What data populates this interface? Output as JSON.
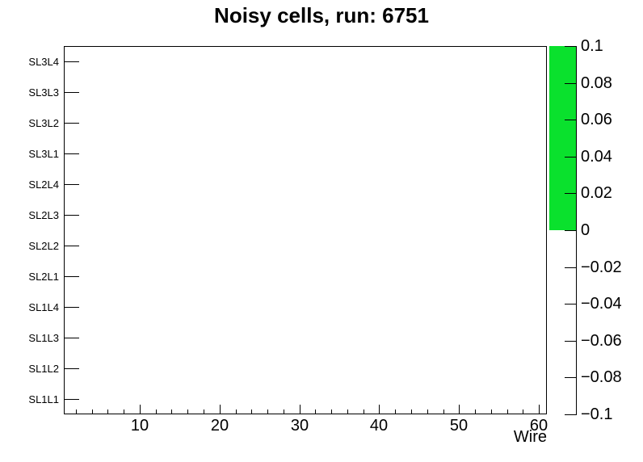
{
  "chart_data": {
    "type": "heatmap",
    "title": "Noisy cells, run: 6751",
    "xlabel": "Wire",
    "ylabel": "",
    "x_axis": {
      "range": [
        0.5,
        61
      ],
      "major_ticks": [
        10,
        20,
        30,
        40,
        50,
        60
      ],
      "major_tick_labels": [
        "10",
        "20",
        "30",
        "40",
        "50",
        "60"
      ],
      "minor_tick_step": 2
    },
    "y_axis": {
      "bins_bottom_to_top": [
        "SL1L1",
        "SL1L2",
        "SL1L3",
        "SL1L4",
        "SL2L1",
        "SL2L2",
        "SL2L3",
        "SL2L4",
        "SL3L1",
        "SL3L2",
        "SL3L3",
        "SL3L4"
      ]
    },
    "z_axis": {
      "range": [
        -0.1,
        0.1
      ],
      "tick_values": [
        0.1,
        0.08,
        0.06,
        0.04,
        0.02,
        0,
        -0.02,
        -0.04,
        -0.06,
        -0.08,
        -0.1
      ],
      "tick_labels": [
        "0.1",
        "0.08",
        "0.06",
        "0.04",
        "0.02",
        "0",
        "−0.02",
        "−0.04",
        "−0.06",
        "−0.08",
        "−0.1"
      ]
    },
    "palette": {
      "band_from": 0,
      "band_to": 0.1,
      "band_color": "#0ae12d",
      "empty_color": "#ffffff",
      "position": "right"
    },
    "cells": [],
    "grid": false
  },
  "colors": {
    "axis": "#000000",
    "text": "#000000",
    "background": "#ffffff"
  }
}
